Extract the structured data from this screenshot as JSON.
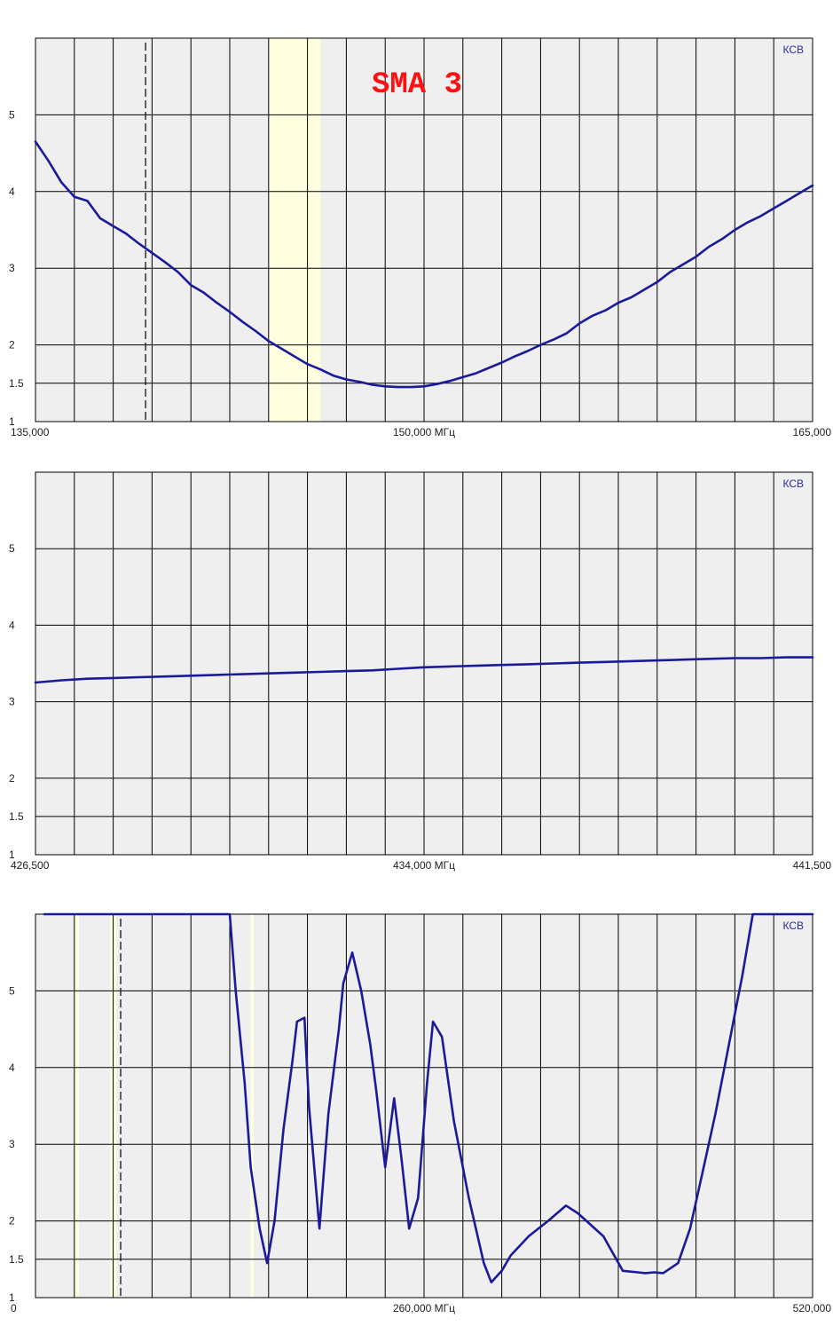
{
  "chart_data": [
    {
      "type": "line",
      "title": "SMA 3",
      "ylabel": "КСВ",
      "xlim": [
        135,
        165
      ],
      "ylim": [
        1,
        6
      ],
      "y_ticks": [
        1,
        1.5,
        2,
        3,
        4,
        5
      ],
      "y_tick_labels": [
        "1",
        "1.5",
        "2",
        "3",
        "4",
        "5"
      ],
      "x_tick_labels": {
        "left": "135,000",
        "center": "150,000 МГц",
        "right": "165,000"
      },
      "grid": true,
      "band_highlights": [
        {
          "from": 144.0,
          "to": 146.0,
          "color": "#ffffe0"
        }
      ],
      "markers": [
        {
          "x": 139.25,
          "style": "dashed"
        }
      ],
      "series": [
        {
          "color": "#1a1a9a",
          "x": [
            135,
            135.5,
            136,
            136.5,
            137,
            137.5,
            138,
            138.5,
            139,
            139.5,
            140,
            140.5,
            141,
            141.5,
            142,
            142.5,
            143,
            143.5,
            144,
            144.5,
            145,
            145.5,
            146,
            146.5,
            147,
            147.5,
            148,
            148.5,
            149,
            149.5,
            150,
            150.5,
            151,
            151.5,
            152,
            152.5,
            153,
            153.5,
            154,
            154.5,
            155,
            155.5,
            156,
            156.5,
            157,
            157.5,
            158,
            158.5,
            159,
            159.5,
            160,
            160.5,
            161,
            161.5,
            162,
            162.5,
            163,
            163.5,
            164,
            164.5,
            165
          ],
          "y": [
            4.65,
            4.4,
            4.12,
            3.93,
            3.88,
            3.65,
            3.55,
            3.45,
            3.32,
            3.2,
            3.08,
            2.95,
            2.78,
            2.68,
            2.55,
            2.43,
            2.3,
            2.18,
            2.05,
            1.95,
            1.85,
            1.75,
            1.68,
            1.6,
            1.55,
            1.52,
            1.48,
            1.46,
            1.45,
            1.45,
            1.46,
            1.49,
            1.53,
            1.58,
            1.63,
            1.7,
            1.77,
            1.85,
            1.92,
            2.0,
            2.07,
            2.15,
            2.28,
            2.38,
            2.45,
            2.55,
            2.62,
            2.72,
            2.82,
            2.95,
            3.05,
            3.15,
            3.28,
            3.38,
            3.5,
            3.6,
            3.68,
            3.78,
            3.88,
            3.98,
            4.08
          ]
        }
      ]
    },
    {
      "type": "line",
      "title": "",
      "ylabel": "КСВ",
      "xlim": [
        426.5,
        441.5
      ],
      "ylim": [
        1,
        6
      ],
      "y_ticks": [
        1,
        1.5,
        2,
        3,
        4,
        5
      ],
      "y_tick_labels": [
        "1",
        "1.5",
        "2",
        "3",
        "4",
        "5"
      ],
      "x_tick_labels": {
        "left": "426,500",
        "center": "434,000 МГц",
        "right": "441,500"
      },
      "grid": true,
      "band_highlights": [],
      "markers": [],
      "series": [
        {
          "color": "#1a1a9a",
          "x": [
            426.5,
            427,
            427.5,
            428,
            428.5,
            429,
            429.5,
            430,
            430.5,
            431,
            431.5,
            432,
            432.5,
            433,
            433.5,
            434,
            434.5,
            435,
            435.5,
            436,
            436.5,
            437,
            437.5,
            438,
            438.5,
            439,
            439.5,
            440,
            440.5,
            441,
            441.5
          ],
          "y": [
            3.25,
            3.28,
            3.3,
            3.31,
            3.32,
            3.33,
            3.34,
            3.35,
            3.36,
            3.37,
            3.38,
            3.39,
            3.4,
            3.41,
            3.43,
            3.45,
            3.46,
            3.47,
            3.48,
            3.49,
            3.5,
            3.51,
            3.52,
            3.53,
            3.54,
            3.55,
            3.56,
            3.57,
            3.57,
            3.58,
            3.58
          ]
        }
      ]
    },
    {
      "type": "line",
      "title": "",
      "ylabel": "КСВ",
      "xlim": [
        0,
        520
      ],
      "ylim": [
        1,
        6
      ],
      "y_ticks": [
        1,
        1.5,
        2,
        3,
        4,
        5
      ],
      "y_tick_labels": [
        "1",
        "1.5",
        "2",
        "3",
        "4",
        "5"
      ],
      "x_tick_labels": {
        "left": "0",
        "center": "260,000 МГц",
        "right": "520,000"
      },
      "grid": true,
      "band_highlights": [
        {
          "from": 26,
          "to": 29,
          "color": "#ffffe0"
        },
        {
          "from": 50,
          "to": 54,
          "color": "#ffffe0"
        },
        {
          "from": 144,
          "to": 146,
          "color": "#ffffe0"
        }
      ],
      "markers": [
        {
          "x": 57,
          "style": "dashed"
        }
      ],
      "series": [
        {
          "color": "#1a1a9a",
          "x": [
            6,
            30,
            60,
            90,
            120,
            130,
            134,
            140,
            144,
            150,
            155,
            160,
            166,
            172,
            175,
            180,
            183,
            190,
            196,
            203,
            206,
            212,
            218,
            224,
            228,
            234,
            240,
            245,
            250,
            256,
            262,
            266,
            272,
            280,
            290,
            300,
            305,
            312,
            318,
            330,
            343,
            355,
            363,
            380,
            393,
            403,
            408,
            414,
            420,
            430,
            438,
            446,
            455,
            462,
            467,
            473,
            480,
            520
          ],
          "y": [
            6.0,
            6.0,
            6.0,
            6.0,
            6.0,
            6.0,
            5.0,
            3.8,
            2.7,
            1.9,
            1.45,
            2.0,
            3.2,
            4.1,
            4.6,
            4.65,
            3.5,
            1.9,
            3.4,
            4.5,
            5.1,
            5.5,
            5.0,
            4.3,
            3.7,
            2.7,
            3.6,
            2.8,
            1.9,
            2.3,
            3.8,
            4.6,
            4.4,
            3.3,
            2.3,
            1.45,
            1.2,
            1.35,
            1.55,
            1.8,
            2.0,
            2.2,
            2.1,
            1.8,
            1.35,
            1.33,
            1.32,
            1.33,
            1.32,
            1.45,
            1.9,
            2.6,
            3.4,
            4.1,
            4.6,
            5.2,
            6.0,
            6.0
          ]
        }
      ]
    }
  ]
}
